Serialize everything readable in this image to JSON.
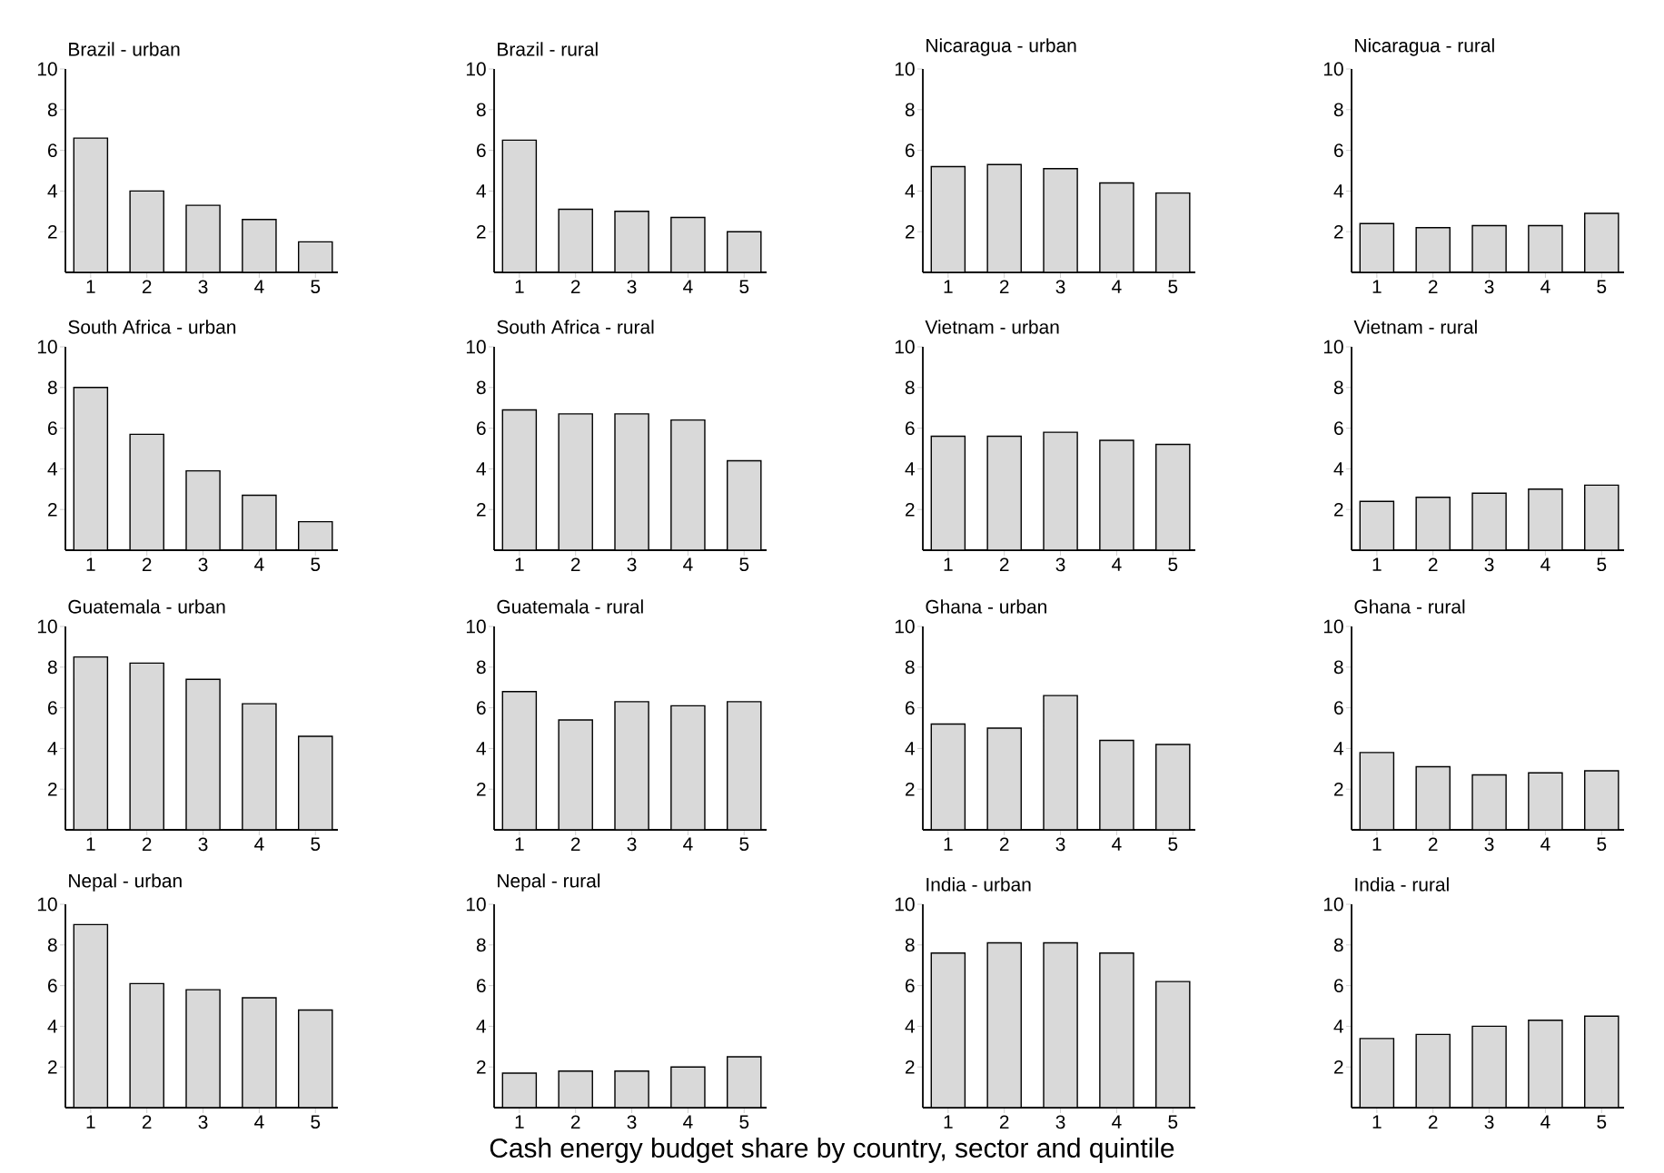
{
  "chart_data": [
    {
      "type": "bar",
      "title": "Brazil - urban",
      "categories": [
        "1",
        "2",
        "3",
        "4",
        "5"
      ],
      "values": [
        6.6,
        4.0,
        3.3,
        2.6,
        1.5
      ],
      "color": "#d9d9d9",
      "ylim": [
        0,
        10
      ],
      "yticks": [
        2,
        4,
        6,
        8,
        10
      ]
    },
    {
      "type": "bar",
      "title": "Brazil - rural",
      "categories": [
        "1",
        "2",
        "3",
        "4",
        "5"
      ],
      "values": [
        6.5,
        3.1,
        3.0,
        2.7,
        2.0
      ],
      "color": "#d9d9d9",
      "ylim": [
        0,
        10
      ],
      "yticks": [
        2,
        4,
        6,
        8,
        10
      ]
    },
    {
      "type": "bar",
      "title": "Nicaragua - urban",
      "categories": [
        "1",
        "2",
        "3",
        "4",
        "5"
      ],
      "values": [
        5.2,
        5.3,
        5.1,
        4.4,
        3.9
      ],
      "color": "#d9d9d9",
      "ylim": [
        0,
        10
      ],
      "yticks": [
        2,
        4,
        6,
        8,
        10
      ]
    },
    {
      "type": "bar",
      "title": "Nicaragua - rural",
      "categories": [
        "1",
        "2",
        "3",
        "4",
        "5"
      ],
      "values": [
        2.4,
        2.2,
        2.3,
        2.3,
        2.9
      ],
      "color": "#d9d9d9",
      "ylim": [
        0,
        10
      ],
      "yticks": [
        2,
        4,
        6,
        8,
        10
      ]
    },
    {
      "type": "bar",
      "title": "South Africa - urban",
      "categories": [
        "1",
        "2",
        "3",
        "4",
        "5"
      ],
      "values": [
        8.0,
        5.7,
        3.9,
        2.7,
        1.4
      ],
      "color": "#d9d9d9",
      "ylim": [
        0,
        10
      ],
      "yticks": [
        2,
        4,
        6,
        8,
        10
      ]
    },
    {
      "type": "bar",
      "title": "South Africa - rural",
      "categories": [
        "1",
        "2",
        "3",
        "4",
        "5"
      ],
      "values": [
        6.9,
        6.7,
        6.7,
        6.4,
        4.4
      ],
      "color": "#d9d9d9",
      "ylim": [
        0,
        10
      ],
      "yticks": [
        2,
        4,
        6,
        8,
        10
      ]
    },
    {
      "type": "bar",
      "title": "Vietnam - urban",
      "categories": [
        "1",
        "2",
        "3",
        "4",
        "5"
      ],
      "values": [
        5.6,
        5.6,
        5.8,
        5.4,
        5.2
      ],
      "color": "#d9d9d9",
      "ylim": [
        0,
        10
      ],
      "yticks": [
        2,
        4,
        6,
        8,
        10
      ]
    },
    {
      "type": "bar",
      "title": "Vietnam - rural",
      "categories": [
        "1",
        "2",
        "3",
        "4",
        "5"
      ],
      "values": [
        2.4,
        2.6,
        2.8,
        3.0,
        3.2
      ],
      "color": "#d9d9d9",
      "ylim": [
        0,
        10
      ],
      "yticks": [
        2,
        4,
        6,
        8,
        10
      ]
    },
    {
      "type": "bar",
      "title": "Guatemala - urban",
      "categories": [
        "1",
        "2",
        "3",
        "4",
        "5"
      ],
      "values": [
        8.5,
        8.2,
        7.4,
        6.2,
        4.6
      ],
      "color": "#d9d9d9",
      "ylim": [
        0,
        10
      ],
      "yticks": [
        2,
        4,
        6,
        8,
        10
      ]
    },
    {
      "type": "bar",
      "title": "Guatemala - rural",
      "categories": [
        "1",
        "2",
        "3",
        "4",
        "5"
      ],
      "values": [
        6.8,
        5.4,
        6.3,
        6.1,
        6.3
      ],
      "color": "#d9d9d9",
      "ylim": [
        0,
        10
      ],
      "yticks": [
        2,
        4,
        6,
        8,
        10
      ]
    },
    {
      "type": "bar",
      "title": "Ghana - urban",
      "categories": [
        "1",
        "2",
        "3",
        "4",
        "5"
      ],
      "values": [
        5.2,
        5.0,
        6.6,
        4.4,
        4.2
      ],
      "color": "#d9d9d9",
      "ylim": [
        0,
        10
      ],
      "yticks": [
        2,
        4,
        6,
        8,
        10
      ]
    },
    {
      "type": "bar",
      "title": "Ghana - rural",
      "categories": [
        "1",
        "2",
        "3",
        "4",
        "5"
      ],
      "values": [
        3.8,
        3.1,
        2.7,
        2.8,
        2.9
      ],
      "color": "#d9d9d9",
      "ylim": [
        0,
        10
      ],
      "yticks": [
        2,
        4,
        6,
        8,
        10
      ]
    },
    {
      "type": "bar",
      "title": "Nepal - urban",
      "categories": [
        "1",
        "2",
        "3",
        "4",
        "5"
      ],
      "values": [
        9.0,
        6.1,
        5.8,
        5.4,
        4.8
      ],
      "color": "#d9d9d9",
      "ylim": [
        0,
        10
      ],
      "yticks": [
        2,
        4,
        6,
        8,
        10
      ]
    },
    {
      "type": "bar",
      "title": "Nepal - rural",
      "categories": [
        "1",
        "2",
        "3",
        "4",
        "5"
      ],
      "values": [
        1.7,
        1.8,
        1.8,
        2.0,
        2.5
      ],
      "color": "#d9d9d9",
      "ylim": [
        0,
        10
      ],
      "yticks": [
        2,
        4,
        6,
        8,
        10
      ]
    },
    {
      "type": "bar",
      "title": "India - urban",
      "categories": [
        "1",
        "2",
        "3",
        "4",
        "5"
      ],
      "values": [
        7.6,
        8.1,
        8.1,
        7.6,
        6.2
      ],
      "color": "#d9d9d9",
      "ylim": [
        0,
        10
      ],
      "yticks": [
        2,
        4,
        6,
        8,
        10
      ]
    },
    {
      "type": "bar",
      "title": "India - rural",
      "categories": [
        "1",
        "2",
        "3",
        "4",
        "5"
      ],
      "values": [
        3.4,
        3.6,
        4.0,
        4.3,
        4.5
      ],
      "color": "#d9d9d9",
      "ylim": [
        0,
        10
      ],
      "yticks": [
        2,
        4,
        6,
        8,
        10
      ],
      "annotations": [
        "Cash energy budget share by country, sector and quintile"
      ]
    }
  ]
}
